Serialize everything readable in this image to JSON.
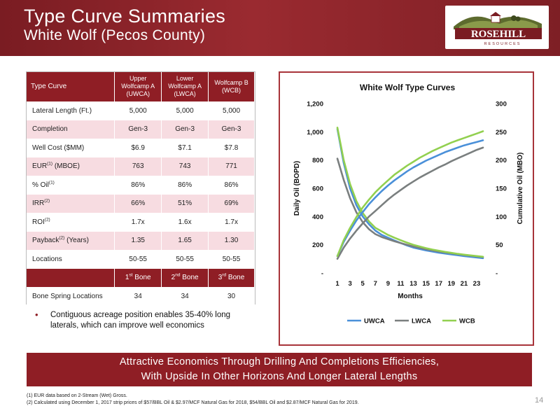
{
  "header": {
    "title": "Type Curve Summaries",
    "subtitle": "White Wolf (Pecos County)"
  },
  "logo": {
    "name": "ROSEHILL",
    "tagline": "RESOURCES"
  },
  "table": {
    "col_header": "Type Curve",
    "columns": [
      [
        "Upper",
        "Wolfcamp A",
        "(UWCA)"
      ],
      [
        "Lower",
        "Wolfcamp A",
        "(LWCA)"
      ],
      [
        "Wolfcamp B",
        "(WCB)"
      ]
    ],
    "rows": [
      {
        "label": "Lateral Length (Ft.)",
        "sup": "",
        "suffix": "",
        "values": [
          "5,000",
          "5,000",
          "5,000"
        ]
      },
      {
        "label": "Completion",
        "sup": "",
        "suffix": "",
        "values": [
          "Gen-3",
          "Gen-3",
          "Gen-3"
        ]
      },
      {
        "label": "Well Cost ($MM)",
        "sup": "",
        "suffix": "",
        "values": [
          "$6.9",
          "$7.1",
          "$7.8"
        ]
      },
      {
        "label": "EUR",
        "sup": "(1)",
        "suffix": " (MBOE)",
        "values": [
          "763",
          "743",
          "771"
        ]
      },
      {
        "label": "% Oil",
        "sup": "(1)",
        "suffix": "",
        "values": [
          "86%",
          "86%",
          "86%"
        ]
      },
      {
        "label": "IRR",
        "sup": "(2)",
        "suffix": "",
        "values": [
          "66%",
          "51%",
          "69%"
        ]
      },
      {
        "label": "ROI",
        "sup": "(2)",
        "suffix": "",
        "values": [
          "1.7x",
          "1.6x",
          "1.7x"
        ]
      },
      {
        "label": "Payback",
        "sup": "(2)",
        "suffix": " (Years)",
        "values": [
          "1.35",
          "1.65",
          "1.30"
        ]
      },
      {
        "label": "Locations",
        "sup": "",
        "suffix": "",
        "values": [
          "50-55",
          "50-55",
          "50-55"
        ]
      }
    ],
    "bone_headers": [
      {
        "num": "1",
        "sup": "st",
        "word": " Bone"
      },
      {
        "num": "2",
        "sup": "nd",
        "word": " Bone"
      },
      {
        "num": "3",
        "sup": "rd",
        "word": " Bone"
      }
    ],
    "bone_row": {
      "label": "Bone Spring Locations",
      "values": [
        "34",
        "34",
        "30"
      ]
    }
  },
  "bullet": "Contiguous acreage position enables 35-40% long laterals, which can improve well economics",
  "banner": {
    "line1": "Attractive Economics Through Drilling And Completions Efficiencies,",
    "line2": "With Upside In Other Horizons And Longer Lateral Lengths"
  },
  "footnotes": {
    "f1": "(1) EUR data based on 2-Stream (Wet) Gross.",
    "f2": "(2) Calculated using December 1, 2017 strip prices of $57/BBL Oil & $2.97/MCF Natural Gas for 2018, $54/BBL Oil and $2.87/MCF Natural Gas for 2019."
  },
  "page_number": "14",
  "colors": {
    "brand": "#8f1e25",
    "uwca": "#4a90d9",
    "lwca": "#7a7f7f",
    "wcb": "#92d050"
  },
  "chart_data": {
    "type": "line",
    "title": "White Wolf Type Curves",
    "xlabel": "Months",
    "ylabel": "Daily Oil (BOPD)",
    "y2label": "Cumulative Oil (MBO)",
    "x": [
      1,
      2,
      3,
      4,
      5,
      6,
      7,
      8,
      9,
      10,
      11,
      12,
      13,
      14,
      15,
      16,
      17,
      18,
      19,
      20,
      21,
      22,
      23,
      24
    ],
    "x_tick_labels": [
      "1",
      "3",
      "5",
      "7",
      "9",
      "11",
      "13",
      "15",
      "17",
      "19",
      "21",
      "23"
    ],
    "ylim": [
      0,
      1200
    ],
    "y_ticks": [
      "-",
      "200",
      "400",
      "600",
      "800",
      "1,000",
      "1,200"
    ],
    "y2lim": [
      0,
      300
    ],
    "y2_ticks": [
      "-",
      "50",
      "100",
      "150",
      "200",
      "250",
      "300"
    ],
    "legend_position": "bottom",
    "grid": false,
    "series": [
      {
        "name": "UWCA",
        "axis": "left",
        "kind": "rate",
        "values": [
          1020,
          780,
          600,
          480,
          400,
          345,
          300,
          270,
          250,
          230,
          212,
          195,
          180,
          170,
          160,
          152,
          144,
          138,
          132,
          126,
          120,
          115,
          110,
          105
        ]
      },
      {
        "name": "LWCA",
        "axis": "left",
        "kind": "rate",
        "values": [
          810,
          660,
          530,
          430,
          360,
          310,
          275,
          255,
          240,
          225,
          212,
          200,
          188,
          178,
          168,
          160,
          152,
          146,
          140,
          134,
          128,
          123,
          118,
          113
        ]
      },
      {
        "name": "WCB",
        "axis": "left",
        "kind": "rate",
        "values": [
          1030,
          800,
          630,
          510,
          425,
          365,
          320,
          295,
          270,
          250,
          232,
          215,
          200,
          188,
          176,
          166,
          158,
          150,
          143,
          136,
          130,
          125,
          120,
          115
        ]
      },
      {
        "name": "UWCA",
        "axis": "right",
        "kind": "cum",
        "values": [
          30,
          55,
          75,
          93,
          108,
          122,
          134,
          145,
          155,
          164,
          172,
          180,
          187,
          193,
          199,
          204,
          209,
          214,
          218,
          222,
          226,
          229,
          232,
          235
        ]
      },
      {
        "name": "LWCA",
        "axis": "right",
        "kind": "cum",
        "values": [
          25,
          45,
          61,
          75,
          88,
          100,
          110,
          120,
          130,
          139,
          147,
          155,
          162,
          169,
          175,
          181,
          187,
          192,
          198,
          203,
          208,
          213,
          218,
          222
        ]
      },
      {
        "name": "WCB",
        "axis": "right",
        "kind": "cum",
        "values": [
          30,
          58,
          80,
          99,
          116,
          130,
          143,
          154,
          164,
          174,
          182,
          190,
          197,
          204,
          210,
          216,
          221,
          226,
          231,
          235,
          239,
          243,
          247,
          251
        ]
      }
    ],
    "legend": [
      "UWCA",
      "LWCA",
      "WCB"
    ]
  }
}
